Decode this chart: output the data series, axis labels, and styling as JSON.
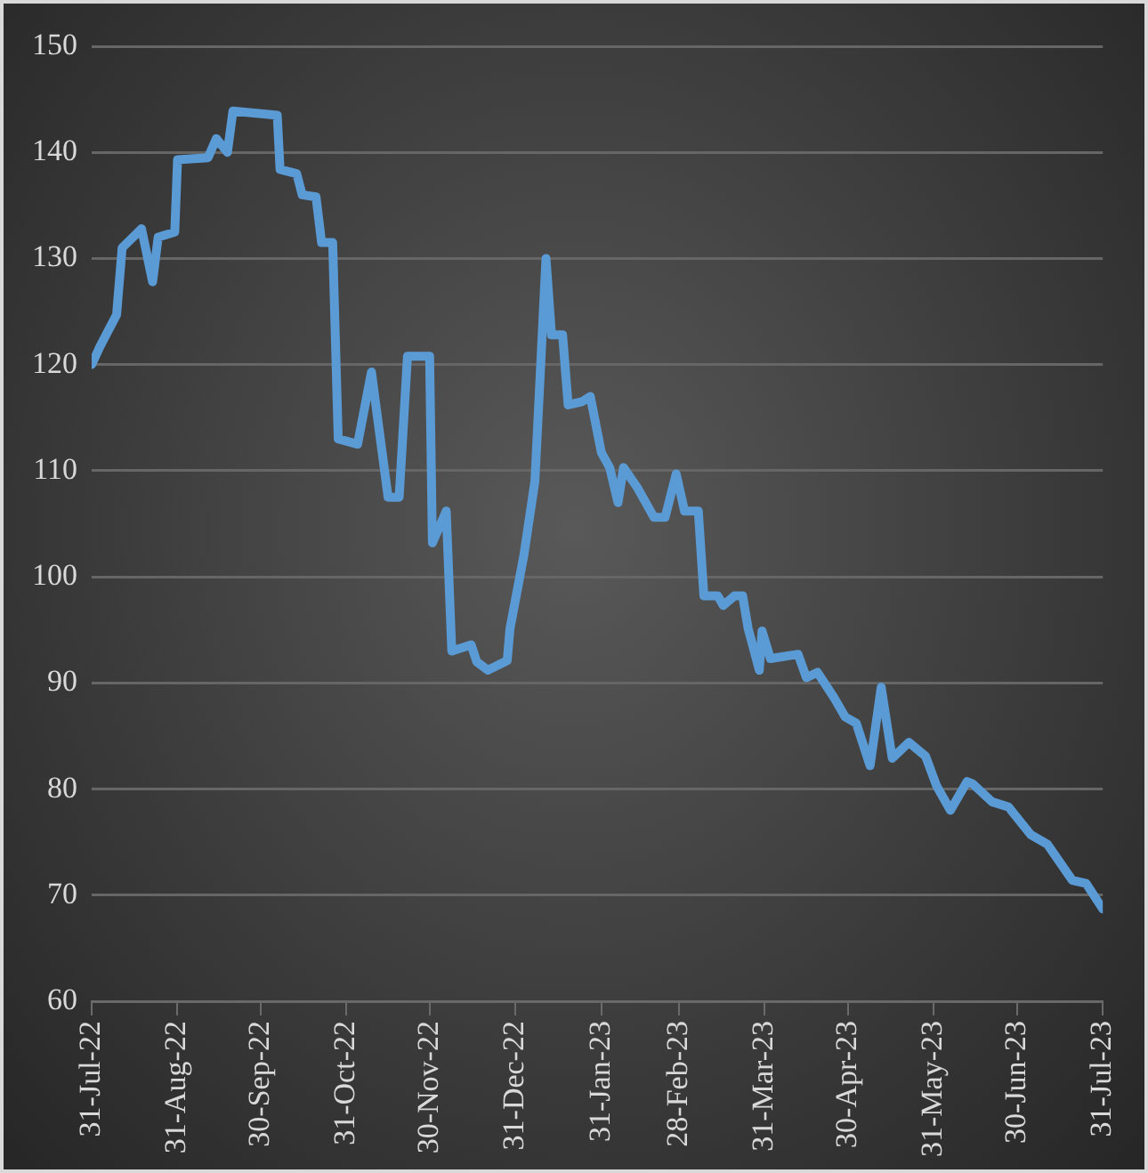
{
  "chart_data": {
    "type": "line",
    "x": [
      "2022-07-31",
      "2022-08-03",
      "2022-08-09",
      "2022-08-11",
      "2022-08-18",
      "2022-08-22",
      "2022-08-24",
      "2022-08-30",
      "2022-08-31",
      "2022-09-11",
      "2022-09-14",
      "2022-09-18",
      "2022-09-20",
      "2022-10-06",
      "2022-10-07",
      "2022-10-13",
      "2022-10-15",
      "2022-10-20",
      "2022-10-22",
      "2022-10-26",
      "2022-10-28",
      "2022-11-04",
      "2022-11-09",
      "2022-11-15",
      "2022-11-19",
      "2022-11-22",
      "2022-11-30",
      "2022-12-01",
      "2022-12-06",
      "2022-12-08",
      "2022-12-15",
      "2022-12-17",
      "2022-12-21",
      "2022-12-28",
      "2022-12-29",
      "2023-01-03",
      "2023-01-07",
      "2023-01-11",
      "2023-01-13",
      "2023-01-17",
      "2023-01-19",
      "2023-01-24",
      "2023-01-27",
      "2023-01-31",
      "2023-02-03",
      "2023-02-06",
      "2023-02-08",
      "2023-02-13",
      "2023-02-19",
      "2023-02-23",
      "2023-02-27",
      "2023-03-02",
      "2023-03-07",
      "2023-03-09",
      "2023-03-14",
      "2023-03-16",
      "2023-03-20",
      "2023-03-23",
      "2023-03-25",
      "2023-03-29",
      "2023-03-30",
      "2023-04-02",
      "2023-04-12",
      "2023-04-15",
      "2023-04-19",
      "2023-04-25",
      "2023-04-29",
      "2023-05-03",
      "2023-05-08",
      "2023-05-12",
      "2023-05-16",
      "2023-05-22",
      "2023-05-28",
      "2023-06-01",
      "2023-06-06",
      "2023-06-12",
      "2023-06-14",
      "2023-06-21",
      "2023-06-27",
      "2023-07-05",
      "2023-07-11",
      "2023-07-20",
      "2023-07-25",
      "2023-07-31"
    ],
    "series": [
      {
        "color": "#5b9bd5",
        "values": [
          120,
          121.7,
          124.7,
          131,
          132.8,
          127.8,
          132,
          132.5,
          139.3,
          139.5,
          141.3,
          140,
          143.9,
          143.5,
          138.4,
          138,
          136,
          135.8,
          131.5,
          131.5,
          113,
          112.5,
          119.3,
          107.5,
          107.5,
          120.8,
          120.8,
          103.2,
          106.2,
          93,
          93.6,
          92,
          91.2,
          92.1,
          95.1,
          102,
          109,
          130,
          122.8,
          122.8,
          116.2,
          116.5,
          117,
          111.7,
          110.3,
          107,
          110.3,
          108.4,
          105.6,
          105.6,
          109.7,
          106.2,
          106.2,
          98.2,
          98.2,
          97.3,
          98.2,
          98.2,
          95.1,
          91.2,
          94.9,
          92.3,
          92.7,
          90.5,
          91,
          88.6,
          86.8,
          86.2,
          82.2,
          89.6,
          82.9,
          84.4,
          83.1,
          80.3,
          78,
          80.7,
          80.5,
          78.8,
          78.3,
          75.7,
          74.8,
          71.4,
          71.1,
          68.7
        ]
      }
    ],
    "xlim": [
      "2022-07-31",
      "2023-07-31"
    ],
    "xticks": [
      {
        "value": "2022-07-31",
        "label": "31-Jul-22"
      },
      {
        "value": "2022-08-31",
        "label": "31-Aug-22"
      },
      {
        "value": "2022-09-30",
        "label": "30-Sep-22"
      },
      {
        "value": "2022-10-31",
        "label": "31-Oct-22"
      },
      {
        "value": "2022-11-30",
        "label": "30-Nov-22"
      },
      {
        "value": "2022-12-31",
        "label": "31-Dec-22"
      },
      {
        "value": "2023-01-31",
        "label": "31-Jan-23"
      },
      {
        "value": "2023-02-28",
        "label": "28-Feb-23"
      },
      {
        "value": "2023-03-31",
        "label": "31-Mar-23"
      },
      {
        "value": "2023-04-30",
        "label": "30-Apr-23"
      },
      {
        "value": "2023-05-31",
        "label": "31-May-23"
      },
      {
        "value": "2023-06-30",
        "label": "30-Jun-23"
      },
      {
        "value": "2023-07-31",
        "label": "31-Jul-23"
      }
    ],
    "ylim": [
      60,
      150
    ],
    "yticks": [
      60,
      70,
      80,
      90,
      100,
      110,
      120,
      130,
      140,
      150
    ],
    "grid": "y",
    "legend": false,
    "marker": "none",
    "line_style": "solid"
  }
}
